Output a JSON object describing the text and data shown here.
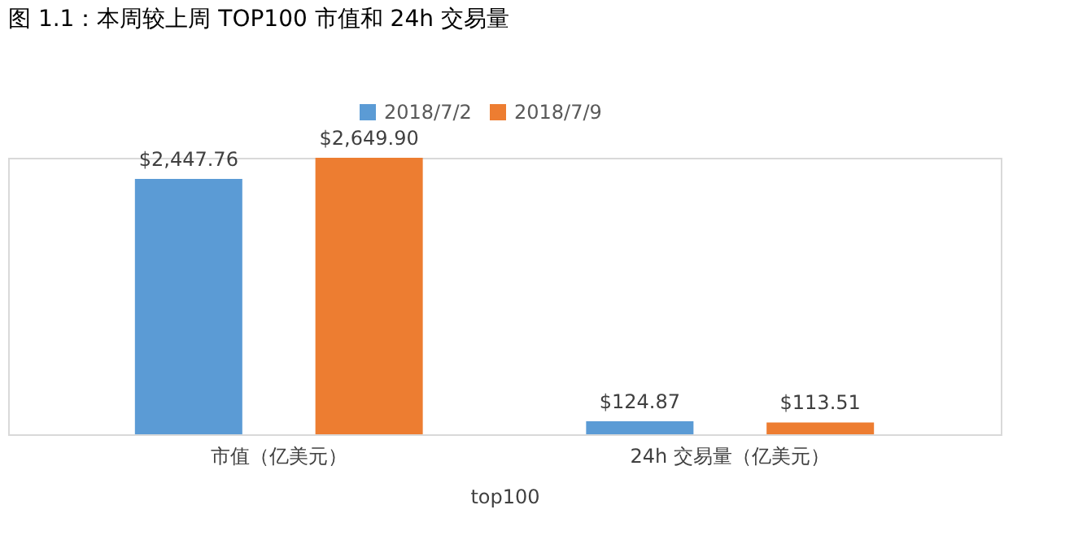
{
  "chart_data": {
    "type": "bar",
    "title": "图 1.1：本周较上周 TOP100 市值和 24h 交易量",
    "xlabel": "top100",
    "categories": [
      "市值（亿美元）",
      "24h 交易量（亿美元）"
    ],
    "series": [
      {
        "name": "2018/7/2",
        "color": "#5b9bd5",
        "values": [
          2447.76,
          124.87
        ],
        "value_labels": [
          "$2,447.76",
          "$124.87"
        ]
      },
      {
        "name": "2018/7/9",
        "color": "#ed7d31",
        "values": [
          2649.9,
          113.51
        ],
        "value_labels": [
          "$2,649.90",
          "$113.51"
        ]
      }
    ],
    "legend": "top"
  }
}
